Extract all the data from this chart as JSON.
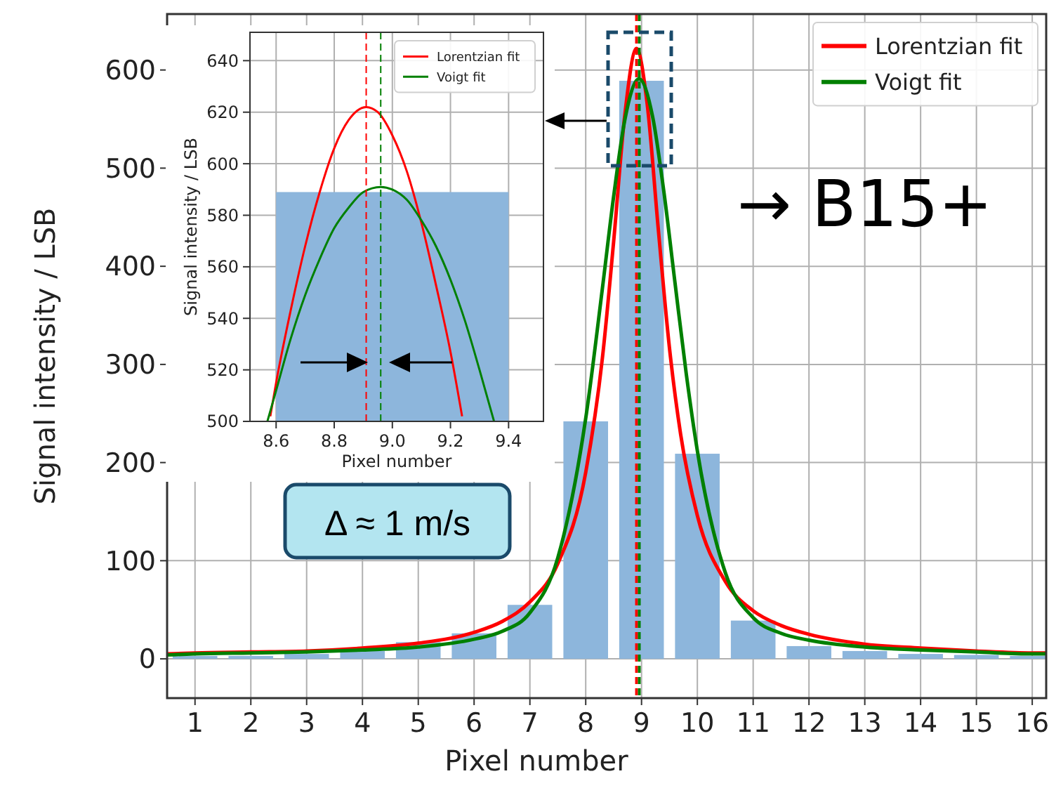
{
  "chart_data": [
    {
      "type": "bar",
      "xlabel": "Pixel number",
      "ylabel": "Signal intensity / LSB",
      "xlim": [
        0.5,
        16.25
      ],
      "ylim": [
        -40,
        657
      ],
      "xticks": [
        1,
        2,
        3,
        4,
        5,
        6,
        7,
        8,
        9,
        10,
        11,
        12,
        13,
        14,
        15,
        16
      ],
      "yticks": [
        0,
        100,
        200,
        300,
        400,
        500,
        600
      ],
      "grid": true,
      "legend": "top right",
      "series": [
        {
          "color": "#8db6dc",
          "x": [
            1,
            2,
            3,
            4,
            5,
            6,
            7,
            8,
            9,
            10,
            11,
            12,
            13,
            14,
            15,
            16
          ],
          "values": [
            3,
            3,
            5,
            8,
            17,
            26,
            55,
            242,
            589,
            209,
            39,
            13,
            8,
            5,
            4,
            3
          ]
        },
        {
          "type": "line",
          "name": "Lorentzian fit",
          "color": "#ff0000",
          "x": [
            0.5,
            1,
            2,
            3,
            4,
            5,
            6,
            6.5,
            7,
            7.5,
            8,
            8.3,
            8.5,
            8.7,
            8.91,
            9.1,
            9.3,
            9.5,
            9.7,
            10,
            10.5,
            11,
            11.5,
            12,
            13,
            14,
            15,
            16,
            16.25
          ],
          "values": [
            5,
            6,
            7,
            8,
            11,
            16,
            27,
            38,
            58,
            97,
            190,
            307,
            425,
            554,
            622,
            566,
            438,
            317,
            229,
            146,
            79,
            49,
            34,
            25,
            15,
            11,
            8,
            6,
            6
          ]
        },
        {
          "type": "line",
          "name": "Voigt fit",
          "color": "#008000",
          "x": [
            0.5,
            1,
            2,
            3,
            4,
            5,
            6,
            6.5,
            7,
            7.5,
            8,
            8.3,
            8.5,
            8.7,
            8.955,
            9.2,
            9.4,
            9.6,
            9.8,
            10,
            10.5,
            11,
            11.5,
            12,
            13,
            14,
            15,
            16,
            16.25
          ],
          "values": [
            4,
            5,
            6,
            7,
            9,
            12,
            20,
            28,
            47,
            103,
            245,
            378,
            471,
            549,
            591,
            552,
            476,
            383,
            291,
            212,
            88,
            42,
            26,
            19,
            12,
            9,
            7,
            5,
            5
          ]
        }
      ],
      "ref_lines": [
        {
          "axis": "x",
          "value": 8.91,
          "color": "#ff0000",
          "line_style": "dashed"
        },
        {
          "axis": "x",
          "value": 8.96,
          "color": "#008000",
          "line_style": "dashed"
        }
      ],
      "annotations": [
        "Δ ≈ 1 m/s",
        "→ B15+"
      ]
    },
    {
      "type": "bar",
      "xlabel": "Pixel number",
      "ylabel": "Signal intensity / LSB",
      "xlim": [
        8.51,
        9.52
      ],
      "ylim": [
        500,
        651
      ],
      "xticks": [
        {
          "value": 8.6,
          "label": "8.6"
        },
        {
          "value": 8.8,
          "label": "8.8"
        },
        {
          "value": 9.0,
          "label": "9.0"
        },
        {
          "value": 9.2,
          "label": "9.2"
        },
        {
          "value": 9.4,
          "label": "9.4"
        }
      ],
      "yticks": [
        500,
        520,
        540,
        560,
        580,
        600,
        620,
        640
      ],
      "grid": true,
      "legend": "top right",
      "series": [
        {
          "color": "#8db6dc",
          "x": [
            9
          ],
          "values": [
            589
          ]
        },
        {
          "type": "line",
          "name": "Lorentzian fit",
          "color": "#ff0000",
          "x": [
            8.58,
            8.6,
            8.65,
            8.7,
            8.75,
            8.8,
            8.85,
            8.91,
            8.95,
            9.0,
            9.05,
            9.1,
            9.15,
            9.2,
            9.24
          ],
          "values": [
            502,
            515,
            543,
            568,
            589,
            606,
            617,
            622,
            620,
            611,
            597,
            577,
            553,
            527,
            502
          ]
        },
        {
          "type": "line",
          "name": "Voigt fit",
          "color": "#008000",
          "x": [
            8.57,
            8.6,
            8.65,
            8.7,
            8.75,
            8.8,
            8.85,
            8.9,
            8.96,
            9.0,
            9.05,
            9.1,
            9.15,
            9.2,
            9.25,
            9.3,
            9.35
          ],
          "values": [
            500,
            512,
            532,
            549,
            563,
            575,
            583,
            589,
            591,
            590,
            586,
            578,
            568,
            555,
            539,
            520,
            500
          ]
        }
      ],
      "ref_lines": [
        {
          "axis": "x",
          "value": 8.91,
          "color": "#ff0000",
          "line_style": "dashed"
        },
        {
          "axis": "x",
          "value": 8.96,
          "color": "#008000",
          "line_style": "dashed"
        }
      ]
    }
  ]
}
